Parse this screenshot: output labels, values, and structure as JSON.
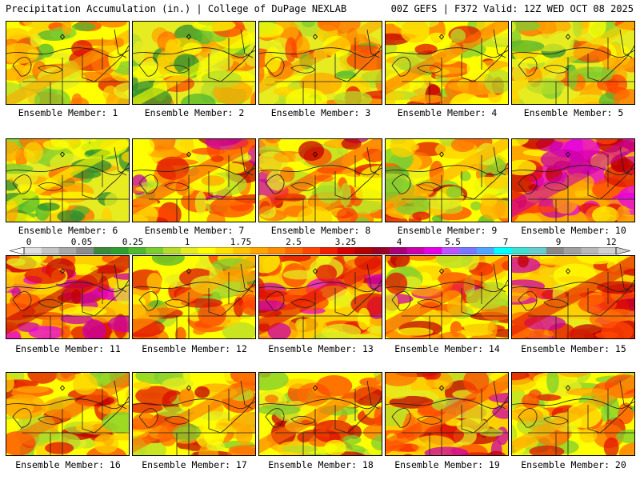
{
  "header": {
    "left": "Precipitation Accumulation (in.) | College of DuPage NEXLAB",
    "right": "00Z GEFS | F372 Valid: 12Z WED OCT 08 2025"
  },
  "members": [
    {
      "label": "Ensemble Member: 1",
      "intensity": 0.45
    },
    {
      "label": "Ensemble Member: 2",
      "intensity": 0.28
    },
    {
      "label": "Ensemble Member: 3",
      "intensity": 0.4
    },
    {
      "label": "Ensemble Member: 4",
      "intensity": 0.5
    },
    {
      "label": "Ensemble Member: 5",
      "intensity": 0.35
    },
    {
      "label": "Ensemble Member: 6",
      "intensity": 0.25
    },
    {
      "label": "Ensemble Member: 7",
      "intensity": 0.55
    },
    {
      "label": "Ensemble Member: 8",
      "intensity": 0.55
    },
    {
      "label": "Ensemble Member: 9",
      "intensity": 0.45
    },
    {
      "label": "Ensemble Member: 10",
      "intensity": 0.75
    },
    {
      "label": "Ensemble Member: 11",
      "intensity": 0.7
    },
    {
      "label": "Ensemble Member: 12",
      "intensity": 0.45
    },
    {
      "label": "Ensemble Member: 13",
      "intensity": 0.65
    },
    {
      "label": "Ensemble Member: 14",
      "intensity": 0.55
    },
    {
      "label": "Ensemble Member: 15",
      "intensity": 0.65
    },
    {
      "label": "Ensemble Member: 16",
      "intensity": 0.5
    },
    {
      "label": "Ensemble Member: 17",
      "intensity": 0.5
    },
    {
      "label": "Ensemble Member: 18",
      "intensity": 0.5
    },
    {
      "label": "Ensemble Member: 19",
      "intensity": 0.6
    },
    {
      "label": "Ensemble Member: 20",
      "intensity": 0.45
    }
  ],
  "colorbar": {
    "labels": [
      "0",
      "0.05",
      "0.25",
      "1",
      "1.75",
      "2.5",
      "3.25",
      "4",
      "5.5",
      "7",
      "9",
      "12"
    ],
    "colors": [
      "#e0e0e0",
      "#c4c4c4",
      "#a8a8a8",
      "#8c8c8c",
      "#3a8a3a",
      "#2e9e2e",
      "#4fb82f",
      "#7ccd30",
      "#b5dc2a",
      "#e6ec20",
      "#ffff00",
      "#ffe100",
      "#ffc300",
      "#ffa500",
      "#ff8c00",
      "#ff6a00",
      "#ff4500",
      "#ee2000",
      "#d60000",
      "#b30000",
      "#990026",
      "#aa0077",
      "#cc00aa",
      "#e600e6",
      "#bb55ff",
      "#7777ff",
      "#4fa6ff",
      "#00ffff",
      "#40e0d0",
      "#66cccc",
      "#888888",
      "#a0a0a0",
      "#b8b8b8",
      "#d0d0d0"
    ]
  }
}
